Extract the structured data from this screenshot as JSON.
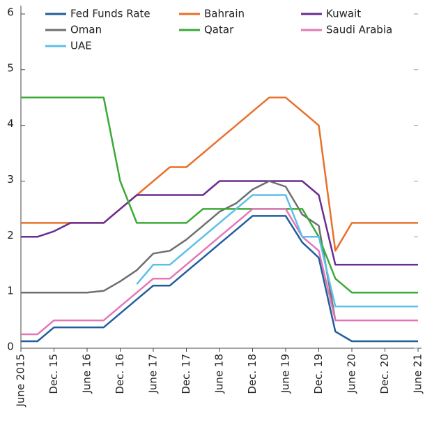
{
  "chart_data": {
    "type": "line",
    "categories": [
      "June 2015",
      null,
      "Dec. 15",
      null,
      "June 16",
      null,
      "Dec. 16",
      null,
      "June 17",
      null,
      "Dec. 17",
      null,
      "June 18",
      null,
      "Dec. 18",
      null,
      "June 19",
      null,
      "Dec. 19",
      null,
      "June 20",
      null,
      "Dec. 20",
      null,
      "June 21"
    ],
    "series": [
      {
        "name": "Fed Funds Rate",
        "color": "#1f5e9e",
        "values": [
          0.125,
          0.125,
          0.375,
          0.375,
          0.375,
          0.375,
          0.625,
          0.875,
          1.125,
          1.125,
          1.375,
          1.625,
          1.875,
          2.125,
          2.375,
          2.375,
          2.375,
          1.9,
          1.625,
          0.3,
          0.125,
          0.125,
          0.125,
          0.125,
          0.125
        ]
      },
      {
        "name": "Bahrain",
        "color": "#e8702a",
        "values": [
          2.25,
          2.25,
          2.25,
          2.25,
          2.25,
          2.25,
          2.5,
          2.75,
          3.0,
          3.25,
          3.25,
          3.5,
          3.75,
          4.0,
          4.25,
          4.5,
          4.5,
          4.25,
          4.0,
          1.75,
          2.25,
          2.25,
          2.25,
          2.25,
          2.25
        ]
      },
      {
        "name": "Kuwait",
        "color": "#6a2c91",
        "values": [
          2.0,
          2.0,
          2.1,
          2.25,
          2.25,
          2.25,
          2.5,
          2.75,
          2.75,
          2.75,
          2.75,
          2.75,
          3.0,
          3.0,
          3.0,
          3.0,
          3.0,
          3.0,
          2.75,
          1.5,
          1.5,
          1.5,
          1.5,
          1.5,
          1.5
        ]
      },
      {
        "name": "Oman",
        "color": "#6d6e70",
        "values": [
          1.0,
          1.0,
          1.0,
          1.0,
          1.0,
          1.03,
          1.2,
          1.4,
          1.7,
          1.75,
          1.95,
          2.2,
          2.45,
          2.6,
          2.85,
          3.0,
          2.9,
          2.4,
          2.2,
          0.5,
          null,
          null,
          null,
          null,
          null
        ]
      },
      {
        "name": "Qatar",
        "color": "#3aaa35",
        "values": [
          4.5,
          4.5,
          4.5,
          4.5,
          4.5,
          4.5,
          3.0,
          2.25,
          2.25,
          2.25,
          2.25,
          2.5,
          2.5,
          2.5,
          2.5,
          2.5,
          2.5,
          2.5,
          2.0,
          1.25,
          1.0,
          1.0,
          1.0,
          1.0,
          1.0
        ]
      },
      {
        "name": "Saudi Arabia",
        "color": "#e377b5",
        "values": [
          0.25,
          0.25,
          0.5,
          0.5,
          0.5,
          0.5,
          0.75,
          1.0,
          1.25,
          1.25,
          1.5,
          1.75,
          2.0,
          2.25,
          2.5,
          2.5,
          2.5,
          2.0,
          1.75,
          0.5,
          0.5,
          0.5,
          0.5,
          0.5,
          0.5
        ]
      },
      {
        "name": "UAE",
        "color": "#5bc0e8",
        "values": [
          null,
          null,
          null,
          null,
          null,
          null,
          null,
          1.15,
          1.5,
          1.5,
          1.75,
          2.0,
          2.25,
          2.5,
          2.75,
          2.75,
          2.75,
          2.0,
          2.0,
          0.75,
          0.75,
          0.75,
          0.75,
          0.75,
          0.75
        ]
      }
    ],
    "ylim": [
      0,
      6
    ],
    "yticks": [
      0,
      1,
      2,
      3,
      4,
      5,
      6
    ]
  }
}
